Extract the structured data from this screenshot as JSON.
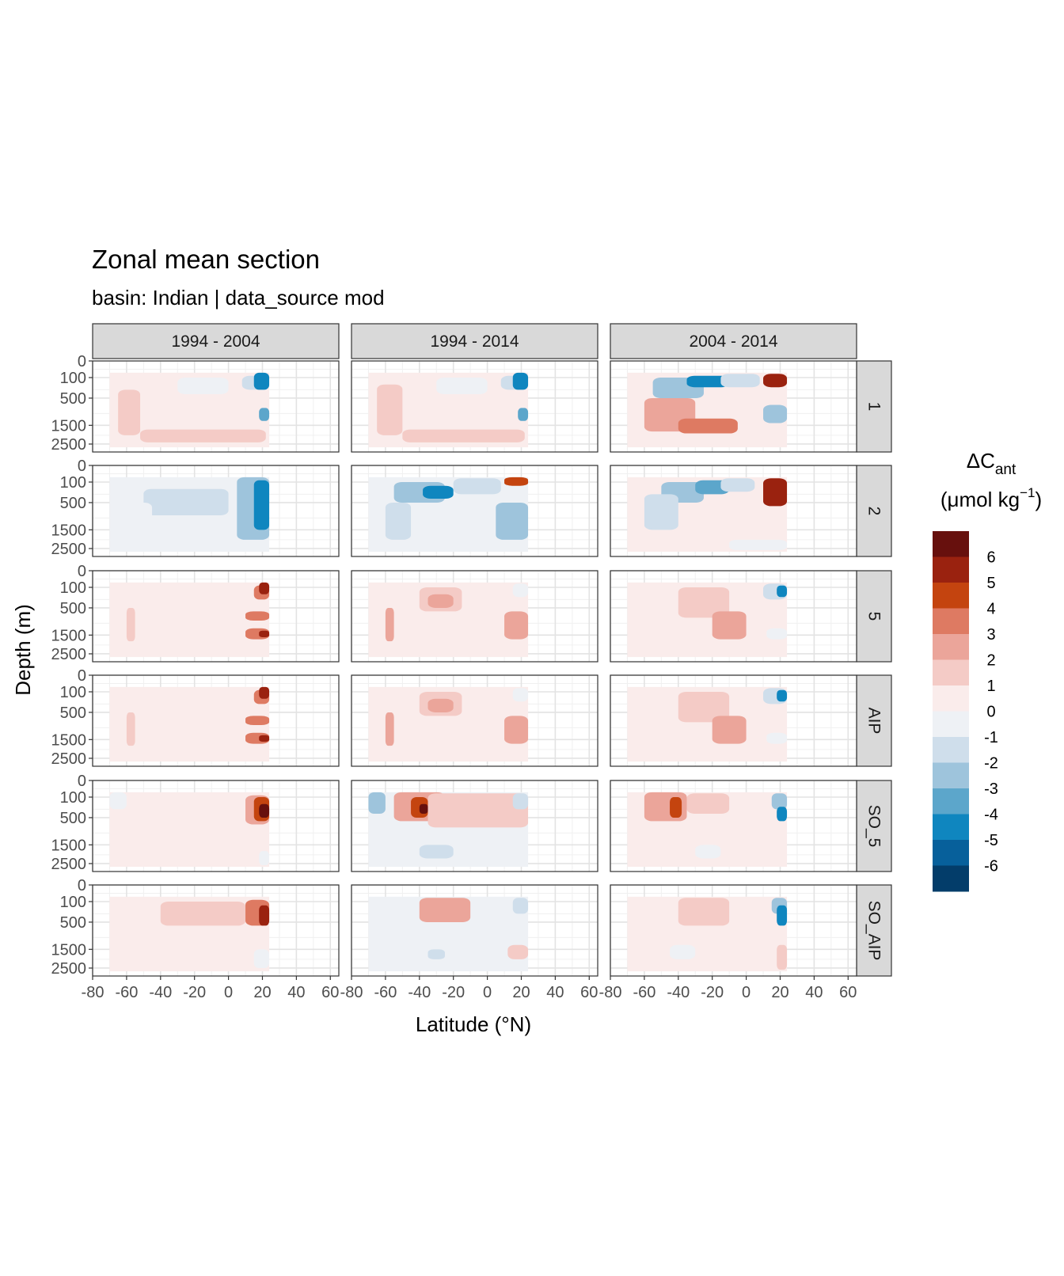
{
  "chart_data": {
    "type": "heatmap",
    "title": "Zonal mean section",
    "subtitle": "basin: Indian | data_source mod",
    "xlabel": "Latitude (°N)",
    "ylabel": "Depth (m)",
    "x_ticks": [
      "-80",
      "-60",
      "-40",
      "-20",
      "0",
      "20",
      "40",
      "60"
    ],
    "x_tick_values": [
      -80,
      -60,
      -40,
      -20,
      0,
      20,
      40,
      60
    ],
    "xlim": [
      -80,
      65
    ],
    "y_ticks": [
      "0",
      "100",
      "500",
      "1500",
      "2500"
    ],
    "y_tick_values": [
      0,
      100,
      500,
      1500,
      2500
    ],
    "y_scale": "sqrt (reversed)",
    "ylim": [
      3000,
      0
    ],
    "grid": true,
    "legend_placement": "right",
    "legend": {
      "title_main": "ΔC",
      "title_sub": "ant",
      "units_prefix": "(μmol kg",
      "units_sup": "−1",
      "units_suffix": ")",
      "labels": [
        "6",
        "5",
        "4",
        "3",
        "2",
        "1",
        "0",
        "-1",
        "-2",
        "-3",
        "-4",
        "-5",
        "-6"
      ],
      "colors": [
        "#67100d",
        "#9a220f",
        "#c4440f",
        "#de7a62",
        "#eba59a",
        "#f4cbc6",
        "#faeceb",
        "#eef1f5",
        "#cfdeeb",
        "#9ec4dc",
        "#5ca6cb",
        "#0f86bf",
        "#07609b",
        "#033d6a"
      ]
    },
    "col_facets": [
      "1994 - 2004",
      "1994 - 2014",
      "2004 - 2014"
    ],
    "row_facets": [
      "1",
      "2",
      "5",
      "AIP",
      "SO_5",
      "SO_AIP"
    ],
    "data_extent_lat": [
      -70,
      24
    ],
    "panels": [
      [
        {
          "base": 0,
          "blobs": [
            [
              -65,
              300,
              -52,
              2000,
              1
            ],
            [
              -52,
              1700,
              22,
              2400,
              1
            ],
            [
              -30,
              100,
              0,
              400,
              -1
            ],
            [
              8,
              80,
              22,
              300,
              -2
            ],
            [
              15,
              50,
              24,
              300,
              -5
            ],
            [
              18,
              800,
              24,
              1300,
              -4
            ]
          ]
        },
        {
          "base": 0,
          "blobs": [
            [
              -65,
              200,
              -50,
              2000,
              1
            ],
            [
              -50,
              1700,
              22,
              2400,
              1
            ],
            [
              -30,
              100,
              0,
              400,
              -1
            ],
            [
              8,
              80,
              22,
              300,
              -2
            ],
            [
              15,
              50,
              24,
              300,
              -5
            ],
            [
              18,
              800,
              24,
              1300,
              -4
            ]
          ]
        },
        {
          "base": 0,
          "blobs": [
            [
              -55,
              100,
              -25,
              500,
              -3
            ],
            [
              -35,
              80,
              -10,
              250,
              -5
            ],
            [
              -15,
              60,
              8,
              250,
              -2
            ],
            [
              -60,
              500,
              -30,
              1800,
              2
            ],
            [
              -40,
              1200,
              -5,
              1900,
              3
            ],
            [
              10,
              60,
              24,
              250,
              5
            ],
            [
              10,
              700,
              24,
              1400,
              -3
            ]
          ]
        }
      ],
      [
        {
          "base": -1,
          "blobs": [
            [
              -50,
              200,
              0,
              900,
              -2
            ],
            [
              5,
              50,
              24,
              2000,
              -3
            ],
            [
              15,
              80,
              24,
              1500,
              -5
            ],
            [
              -60,
              500,
              -45,
              2000,
              -1
            ]
          ]
        },
        {
          "base": -1,
          "blobs": [
            [
              -55,
              100,
              -25,
              500,
              -3
            ],
            [
              -38,
              150,
              -20,
              400,
              -5
            ],
            [
              -20,
              60,
              8,
              300,
              -2
            ],
            [
              5,
              500,
              24,
              2000,
              -3
            ],
            [
              10,
              50,
              24,
              150,
              4
            ],
            [
              -60,
              500,
              -45,
              2000,
              -2
            ]
          ]
        },
        {
          "base": 0,
          "blobs": [
            [
              -50,
              100,
              -25,
              500,
              -3
            ],
            [
              -30,
              80,
              -10,
              300,
              -4
            ],
            [
              -15,
              60,
              5,
              250,
              -2
            ],
            [
              10,
              60,
              24,
              600,
              5
            ],
            [
              -60,
              300,
              -40,
              1500,
              -2
            ],
            [
              -10,
              2000,
              24,
              2600,
              -1
            ]
          ]
        }
      ],
      [
        {
          "base": 0,
          "blobs": [
            [
              -60,
              500,
              -55,
              1800,
              1
            ],
            [
              15,
              80,
              24,
              300,
              3
            ],
            [
              18,
              50,
              24,
              200,
              5
            ],
            [
              10,
              600,
              24,
              900,
              3
            ],
            [
              10,
              1200,
              24,
              1700,
              3
            ],
            [
              18,
              1300,
              24,
              1600,
              5
            ]
          ]
        },
        {
          "base": 0,
          "blobs": [
            [
              -60,
              500,
              -55,
              1800,
              2
            ],
            [
              -40,
              100,
              -15,
              600,
              1
            ],
            [
              -35,
              200,
              -20,
              500,
              2
            ],
            [
              10,
              600,
              24,
              1700,
              2
            ],
            [
              15,
              60,
              24,
              250,
              -1
            ]
          ]
        },
        {
          "base": 0,
          "blobs": [
            [
              -40,
              100,
              -10,
              800,
              1
            ],
            [
              -20,
              600,
              0,
              1700,
              2
            ],
            [
              10,
              60,
              24,
              300,
              -2
            ],
            [
              18,
              80,
              24,
              250,
              -5
            ],
            [
              12,
              1200,
              24,
              1700,
              -1
            ]
          ]
        }
      ],
      [
        {
          "base": 0,
          "blobs": [
            [
              -60,
              500,
              -55,
              1800,
              1
            ],
            [
              15,
              80,
              24,
              300,
              3
            ],
            [
              18,
              50,
              24,
              200,
              5
            ],
            [
              10,
              600,
              24,
              900,
              3
            ],
            [
              10,
              1200,
              24,
              1700,
              3
            ],
            [
              18,
              1300,
              24,
              1600,
              5
            ]
          ]
        },
        {
          "base": 0,
          "blobs": [
            [
              -60,
              500,
              -55,
              1800,
              2
            ],
            [
              -40,
              100,
              -15,
              600,
              1
            ],
            [
              -35,
              200,
              -20,
              500,
              2
            ],
            [
              10,
              600,
              24,
              1700,
              2
            ],
            [
              15,
              60,
              24,
              250,
              -1
            ]
          ]
        },
        {
          "base": 0,
          "blobs": [
            [
              -40,
              100,
              -10,
              800,
              1
            ],
            [
              -20,
              600,
              0,
              1700,
              2
            ],
            [
              10,
              60,
              24,
              300,
              -2
            ],
            [
              18,
              80,
              24,
              250,
              -5
            ],
            [
              12,
              1200,
              24,
              1700,
              -1
            ]
          ]
        }
      ],
      [
        {
          "base": 0,
          "blobs": [
            [
              -70,
              50,
              -60,
              300,
              -1
            ],
            [
              10,
              80,
              24,
              700,
              2
            ],
            [
              15,
              100,
              24,
              600,
              4
            ],
            [
              18,
              200,
              24,
              500,
              6
            ],
            [
              18,
              1800,
              24,
              2600,
              -1
            ]
          ]
        },
        {
          "base": -1,
          "blobs": [
            [
              -70,
              50,
              -60,
              400,
              -3
            ],
            [
              -55,
              50,
              -25,
              600,
              2
            ],
            [
              -45,
              100,
              -35,
              500,
              4
            ],
            [
              -40,
              200,
              -35,
              400,
              6
            ],
            [
              -35,
              60,
              24,
              800,
              1
            ],
            [
              -40,
              1500,
              -20,
              2200,
              -2
            ],
            [
              15,
              60,
              24,
              300,
              -2
            ]
          ]
        },
        {
          "base": 0,
          "blobs": [
            [
              -60,
              50,
              -35,
              600,
              2
            ],
            [
              -45,
              100,
              -38,
              500,
              4
            ],
            [
              -35,
              60,
              -10,
              400,
              1
            ],
            [
              15,
              60,
              24,
              300,
              -3
            ],
            [
              18,
              250,
              24,
              600,
              -5
            ],
            [
              -30,
              1500,
              -15,
              2200,
              -1
            ]
          ]
        }
      ],
      [
        {
          "base": 0,
          "blobs": [
            [
              -40,
              100,
              10,
              600,
              1
            ],
            [
              10,
              80,
              24,
              600,
              3
            ],
            [
              18,
              150,
              24,
              600,
              5
            ],
            [
              15,
              1500,
              24,
              2500,
              -1
            ]
          ]
        },
        {
          "base": -1,
          "blobs": [
            [
              -40,
              60,
              -10,
              500,
              2
            ],
            [
              -55,
              1500,
              -30,
              2600,
              -1
            ],
            [
              -35,
              1500,
              -25,
              2000,
              -2
            ],
            [
              15,
              60,
              24,
              300,
              -2
            ],
            [
              12,
              1300,
              24,
              2000,
              1
            ]
          ]
        },
        {
          "base": 0,
          "blobs": [
            [
              -40,
              60,
              -10,
              600,
              1
            ],
            [
              15,
              60,
              24,
              300,
              -3
            ],
            [
              18,
              150,
              24,
              600,
              -5
            ],
            [
              -45,
              1300,
              -30,
              2000,
              -1
            ],
            [
              18,
              1300,
              24,
              2600,
              1
            ]
          ]
        }
      ]
    ]
  }
}
